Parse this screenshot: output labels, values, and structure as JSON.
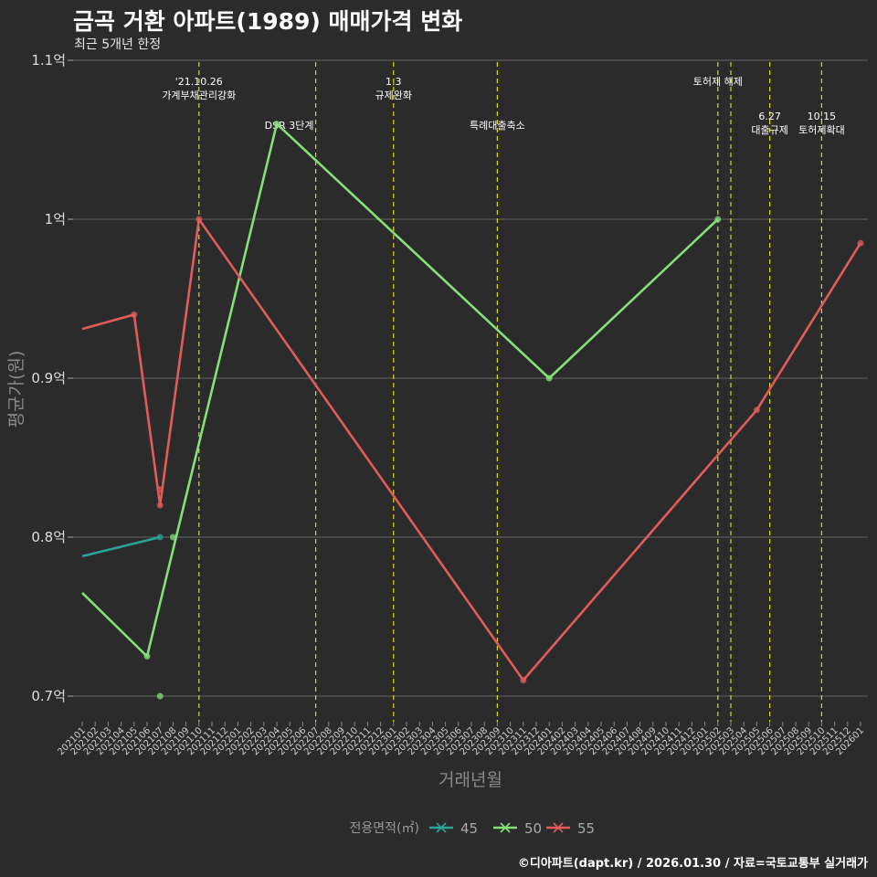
{
  "title": "금곡 거환 아파트(1989) 매매가격 변화",
  "subtitle": "최근 5개년 한정",
  "footer": "©디아파트(dapt.kr) / 2026.01.30 / 자료=국토교통부 실거래가",
  "chart_data": {
    "type": "line",
    "xlabel": "거래년월",
    "ylabel": "평균가(원)",
    "legend_title": "전용면적(㎡)",
    "legend_position": "bottom",
    "ylim": [
      0.68,
      1.1
    ],
    "yticks": [
      0.7,
      0.8,
      0.9,
      1.0,
      1.1
    ],
    "ytick_labels": [
      "0.7억",
      "0.8억",
      "0.9억",
      "1억",
      "1.1억"
    ],
    "categories": [
      "202101",
      "202102",
      "202103",
      "202104",
      "202105",
      "202106",
      "202107",
      "202108",
      "202109",
      "202110",
      "202111",
      "202112",
      "202201",
      "202202",
      "202203",
      "202204",
      "202205",
      "202206",
      "202207",
      "202208",
      "202209",
      "202210",
      "202211",
      "202212",
      "202301",
      "202302",
      "202303",
      "202304",
      "202305",
      "202306",
      "202307",
      "202308",
      "202309",
      "202310",
      "202311",
      "202312",
      "202401",
      "202402",
      "202403",
      "202404",
      "202405",
      "202406",
      "202407",
      "202408",
      "202409",
      "202410",
      "202411",
      "202412",
      "202501",
      "202502",
      "202503",
      "202504",
      "202505",
      "202506",
      "202507",
      "202508",
      "202509",
      "202510",
      "202511",
      "202512",
      "202601"
    ],
    "series": [
      {
        "name": "45",
        "color": "#2aa39a",
        "line": [
          [
            0,
            0.788
          ],
          [
            6,
            0.8
          ]
        ],
        "points": [
          [
            6,
            0.8
          ]
        ]
      },
      {
        "name": "50",
        "color": "#86e07a",
        "line": [
          [
            0,
            0.765
          ],
          [
            5,
            0.725
          ],
          [
            15,
            1.06
          ],
          [
            36,
            0.9
          ],
          [
            49,
            1.0
          ]
        ],
        "points": [
          [
            5,
            0.725
          ],
          [
            6,
            0.7
          ],
          [
            7,
            0.8
          ],
          [
            15,
            1.06
          ],
          [
            36,
            0.9
          ],
          [
            49,
            1.0
          ]
        ]
      },
      {
        "name": "55",
        "color": "#e05c5c",
        "line": [
          [
            0,
            0.931
          ],
          [
            4,
            0.94
          ],
          [
            6,
            0.82
          ],
          [
            9,
            1.0
          ],
          [
            34,
            0.71
          ],
          [
            52,
            0.88
          ],
          [
            60,
            0.985
          ]
        ],
        "points": [
          [
            4,
            0.94
          ],
          [
            6,
            0.83
          ],
          [
            6,
            0.82
          ],
          [
            9,
            1.0
          ],
          [
            34,
            0.71
          ],
          [
            52,
            0.88
          ],
          [
            60,
            0.985
          ]
        ]
      }
    ],
    "events": [
      {
        "index": 9,
        "lines": [
          "'21.10.26",
          "가계부채관리강화"
        ],
        "row": 1
      },
      {
        "index": 18,
        "lines": [
          "DSR 3단계"
        ],
        "row": 2
      },
      {
        "index": 24,
        "lines": [
          "1.3",
          "규제완화"
        ],
        "row": 1
      },
      {
        "index": 32,
        "lines": [
          "특례대출축소"
        ],
        "row": 2
      },
      {
        "index": 49,
        "lines": [
          "토허제 해제"
        ],
        "row": 1
      },
      {
        "index": 50,
        "lines": [],
        "row": 0
      },
      {
        "index": 53,
        "lines": [
          "6.27",
          "대출규제"
        ],
        "row": 3
      },
      {
        "index": 57,
        "lines": [
          "10.15",
          "토허제확대"
        ],
        "row": 3
      }
    ]
  }
}
